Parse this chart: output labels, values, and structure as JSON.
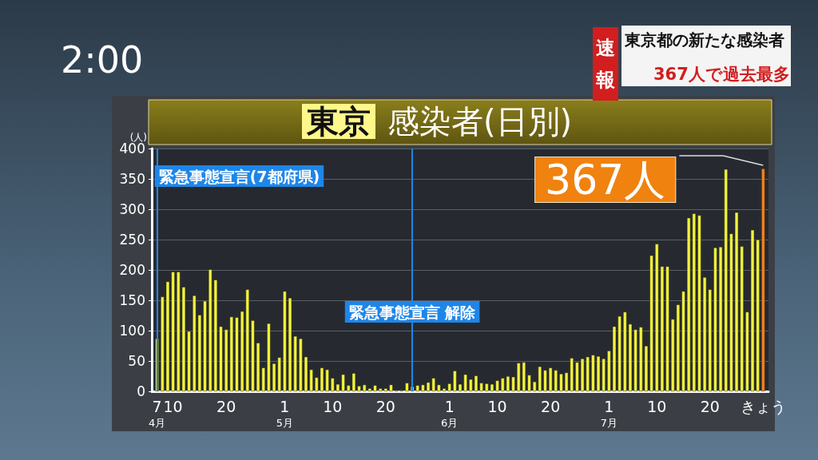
{
  "chart_data": {
    "type": "bar",
    "title": "東京",
    "subtitle": "感染者(日別)",
    "ylabel": "(人)",
    "x": [
      "--04-07",
      "--04-08",
      "--04-09",
      "--04-10",
      "--04-11",
      "--04-12",
      "--04-13",
      "--04-14",
      "--04-15",
      "--04-16",
      "--04-17",
      "--04-18",
      "--04-19",
      "--04-20",
      "--04-21",
      "--04-22",
      "--04-23",
      "--04-24",
      "--04-25",
      "--04-26",
      "--04-27",
      "--04-28",
      "--04-29",
      "--04-30",
      "--05-01",
      "--05-02",
      "--05-03",
      "--05-04",
      "--05-05",
      "--05-06",
      "--05-07",
      "--05-08",
      "--05-09",
      "--05-10",
      "--05-11",
      "--05-12",
      "--05-13",
      "--05-14",
      "--05-15",
      "--05-16",
      "--05-17",
      "--05-18",
      "--05-19",
      "--05-20",
      "--05-21",
      "--05-22",
      "--05-23",
      "--05-24",
      "--05-25",
      "--05-26",
      "--05-27",
      "--05-28",
      "--05-29",
      "--05-30",
      "--05-31",
      "--06-01",
      "--06-02",
      "--06-03",
      "--06-04",
      "--06-05",
      "--06-06",
      "--06-07",
      "--06-08",
      "--06-09",
      "--06-10",
      "--06-11",
      "--06-12",
      "--06-13",
      "--06-14",
      "--06-15",
      "--06-16",
      "--06-17",
      "--06-18",
      "--06-19",
      "--06-20",
      "--06-21",
      "--06-22",
      "--06-23",
      "--06-24",
      "--06-25",
      "--06-26",
      "--06-27",
      "--06-28",
      "--06-29",
      "--06-30",
      "--07-01",
      "--07-02",
      "--07-03",
      "--07-04",
      "--07-05",
      "--07-06",
      "--07-07",
      "--07-08",
      "--07-09",
      "--07-10",
      "--07-11",
      "--07-12",
      "--07-13",
      "--07-14",
      "--07-15",
      "--07-16",
      "--07-17",
      "--07-18",
      "--07-19",
      "--07-20",
      "--07-21",
      "--07-22",
      "--07-23",
      "--07-24",
      "--07-25",
      "--07-26",
      "--07-27",
      "--07-28",
      "--07-29",
      "--07-30"
    ],
    "values": [
      87,
      156,
      181,
      197,
      197,
      172,
      99,
      158,
      126,
      149,
      201,
      184,
      107,
      102,
      123,
      122,
      132,
      168,
      117,
      80,
      39,
      112,
      46,
      56,
      165,
      154,
      91,
      87,
      57,
      36,
      23,
      39,
      36,
      22,
      12,
      28,
      10,
      30,
      9,
      11,
      5,
      10,
      5,
      5,
      11,
      2,
      2,
      14,
      8,
      10,
      11,
      15,
      22,
      11,
      5,
      13,
      34,
      12,
      28,
      20,
      26,
      14,
      13,
      12,
      18,
      22,
      25,
      24,
      47,
      48,
      27,
      16,
      41,
      35,
      39,
      35,
      29,
      31,
      55,
      48,
      54,
      57,
      60,
      58,
      54,
      67,
      107,
      124,
      131,
      111,
      102,
      106,
      75,
      224,
      243,
      206,
      206,
      119,
      143,
      165,
      286,
      293,
      290,
      188,
      168,
      237,
      238,
      366,
      260,
      295,
      239,
      131,
      266,
      250,
      367
    ],
    "colors": [
      "#f2f23c",
      "#f2f23c",
      "#f2f23c",
      "#f2f23c",
      "#f2f23c",
      "#f2f23c",
      "#f2f23c",
      "#f2f23c",
      "#f2f23c",
      "#f2f23c",
      "#f2f23c",
      "#f2f23c",
      "#f2f23c",
      "#f2f23c",
      "#f2f23c",
      "#f2f23c",
      "#f2f23c",
      "#f2f23c",
      "#f2f23c",
      "#f2f23c",
      "#f2f23c",
      "#f2f23c",
      "#f2f23c",
      "#f2f23c",
      "#f2f23c",
      "#f2f23c",
      "#f2f23c",
      "#f2f23c",
      "#f2f23c",
      "#f2f23c",
      "#f2f23c",
      "#f2f23c",
      "#f2f23c",
      "#f2f23c",
      "#f2f23c",
      "#f2f23c",
      "#f2f23c",
      "#f2f23c",
      "#f2f23c",
      "#f2f23c",
      "#f2f23c",
      "#f2f23c",
      "#f2f23c",
      "#f2f23c",
      "#f2f23c",
      "#f2f23c",
      "#f2f23c",
      "#f2f23c",
      "#f2f23c",
      "#f2f23c",
      "#f2f23c",
      "#f2f23c",
      "#f2f23c",
      "#f2f23c",
      "#f2f23c",
      "#f2f23c",
      "#f2f23c",
      "#f2f23c",
      "#f2f23c",
      "#f2f23c",
      "#f2f23c",
      "#f2f23c",
      "#f2f23c",
      "#f2f23c",
      "#f2f23c",
      "#f2f23c",
      "#f2f23c",
      "#f2f23c",
      "#f2f23c",
      "#f2f23c",
      "#f2f23c",
      "#f2f23c",
      "#f2f23c",
      "#f2f23c",
      "#f2f23c",
      "#f2f23c",
      "#f2f23c",
      "#f2f23c",
      "#f2f23c",
      "#f2f23c",
      "#f2f23c",
      "#f2f23c",
      "#f2f23c",
      "#f2f23c",
      "#f2f23c",
      "#f2f23c",
      "#f2f23c",
      "#f2f23c",
      "#f2f23c",
      "#f2f23c",
      "#f2f23c",
      "#f2f23c",
      "#f2f23c",
      "#f2f23c",
      "#f2f23c",
      "#f2f23c",
      "#f2f23c",
      "#f2f23c",
      "#f2f23c",
      "#f2f23c",
      "#f2f23c",
      "#f2f23c",
      "#f2f23c",
      "#f2f23c",
      "#f2f23c",
      "#f2f23c",
      "#f2f23c",
      "#f2f23c",
      "#f2f23c",
      "#f2f23c",
      "#f2f23c",
      "#f2f23c",
      "#f2f23c",
      "#f2f23c",
      "#f5821f"
    ],
    "xlim": [
      "--04-06",
      "--07-31"
    ],
    "xticks": [
      {
        "value": "--04-07",
        "label": "7\n4月"
      },
      {
        "value": "--04-10",
        "label": "10"
      },
      {
        "value": "--04-20",
        "label": "20"
      },
      {
        "value": "--05-01",
        "label": "1\n5月"
      },
      {
        "value": "--05-10",
        "label": "10"
      },
      {
        "value": "--05-20",
        "label": "20"
      },
      {
        "value": "--06-01",
        "label": "1\n6月"
      },
      {
        "value": "--06-10",
        "label": "10"
      },
      {
        "value": "--06-20",
        "label": "20"
      },
      {
        "value": "--07-01",
        "label": "1\n7月"
      },
      {
        "value": "--07-10",
        "label": "10"
      },
      {
        "value": "--07-20",
        "label": "20"
      },
      {
        "value": "--07-30",
        "label": "きょう"
      }
    ],
    "ylim": [
      0,
      400
    ],
    "yticks": [
      0,
      50,
      100,
      150,
      200,
      250,
      300,
      350,
      400
    ],
    "grid": "y",
    "ref_lines": [
      {
        "axis": "x",
        "value": "--04-07",
        "label": "緊急事態宣言(7都府県)",
        "color": "#1e86e8"
      },
      {
        "axis": "x",
        "value": "--05-25",
        "label": "緊急事態宣言 解除",
        "color": "#1e86e8"
      }
    ],
    "annotations": [
      {
        "text": "367人",
        "x": "--07-30",
        "y": 367
      },
      "2:00",
      "速報",
      "東京都の新たな感染者",
      "367人で過去最多"
    ]
  }
}
